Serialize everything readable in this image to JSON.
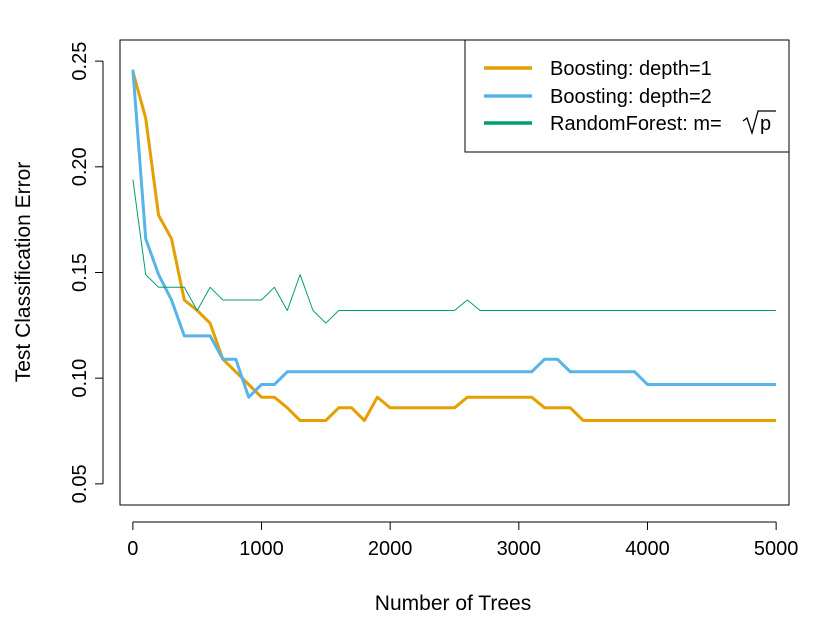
{
  "chart_data": {
    "type": "line",
    "title": "",
    "xlabel": "Number of Trees",
    "ylabel": "Test Classification Error",
    "xlim": [
      -100,
      5100
    ],
    "ylim": [
      0.04,
      0.26
    ],
    "xticks": [
      0,
      1000,
      2000,
      3000,
      4000,
      5000
    ],
    "xtick_labels": [
      "0",
      "1000",
      "2000",
      "3000",
      "4000",
      "5000"
    ],
    "yticks": [
      0.05,
      0.1,
      0.15,
      0.2,
      0.25
    ],
    "ytick_labels": [
      "0.05",
      "0.10",
      "0.15",
      "0.20",
      "0.25"
    ],
    "grid": false,
    "legend_position": "top-right",
    "series": [
      {
        "name": "Boosting: depth=1",
        "color": "#E69F00",
        "line_width": 3,
        "points": [
          [
            0,
            0.245
          ],
          [
            100,
            0.223
          ],
          [
            200,
            0.177
          ],
          [
            300,
            0.166
          ],
          [
            400,
            0.137
          ],
          [
            500,
            0.132
          ],
          [
            600,
            0.126
          ],
          [
            700,
            0.109
          ],
          [
            800,
            0.103
          ],
          [
            900,
            0.097
          ],
          [
            1000,
            0.091
          ],
          [
            1100,
            0.091
          ],
          [
            1200,
            0.086
          ],
          [
            1300,
            0.08
          ],
          [
            1400,
            0.08
          ],
          [
            1500,
            0.08
          ],
          [
            1600,
            0.086
          ],
          [
            1700,
            0.086
          ],
          [
            1800,
            0.08
          ],
          [
            1900,
            0.091
          ],
          [
            2000,
            0.086
          ],
          [
            2100,
            0.086
          ],
          [
            2500,
            0.086
          ],
          [
            2600,
            0.091
          ],
          [
            3100,
            0.091
          ],
          [
            3200,
            0.086
          ],
          [
            3400,
            0.086
          ],
          [
            3500,
            0.08
          ],
          [
            5000,
            0.08
          ]
        ]
      },
      {
        "name": "Boosting: depth=2",
        "color": "#56B4E9",
        "line_width": 3,
        "points": [
          [
            0,
            0.246
          ],
          [
            100,
            0.166
          ],
          [
            200,
            0.149
          ],
          [
            300,
            0.137
          ],
          [
            400,
            0.12
          ],
          [
            500,
            0.12
          ],
          [
            600,
            0.12
          ],
          [
            700,
            0.109
          ],
          [
            800,
            0.109
          ],
          [
            900,
            0.091
          ],
          [
            1000,
            0.097
          ],
          [
            1100,
            0.097
          ],
          [
            1200,
            0.103
          ],
          [
            3100,
            0.103
          ],
          [
            3200,
            0.109
          ],
          [
            3300,
            0.109
          ],
          [
            3400,
            0.103
          ],
          [
            3900,
            0.103
          ],
          [
            4000,
            0.097
          ],
          [
            5000,
            0.097
          ]
        ]
      },
      {
        "name": "RandomForest: m=√p",
        "color": "#009E73",
        "line_width": 1,
        "points": [
          [
            0,
            0.194
          ],
          [
            100,
            0.149
          ],
          [
            200,
            0.143
          ],
          [
            300,
            0.143
          ],
          [
            400,
            0.143
          ],
          [
            500,
            0.132
          ],
          [
            600,
            0.143
          ],
          [
            700,
            0.137
          ],
          [
            800,
            0.137
          ],
          [
            900,
            0.137
          ],
          [
            1000,
            0.137
          ],
          [
            1100,
            0.143
          ],
          [
            1200,
            0.132
          ],
          [
            1300,
            0.149
          ],
          [
            1400,
            0.132
          ],
          [
            1500,
            0.126
          ],
          [
            1600,
            0.132
          ],
          [
            2500,
            0.132
          ],
          [
            2600,
            0.137
          ],
          [
            2700,
            0.132
          ],
          [
            5000,
            0.132
          ]
        ]
      }
    ],
    "legend": {
      "entries": [
        {
          "prefix": "Boosting: depth=1",
          "radicand": ""
        },
        {
          "prefix": "Boosting: depth=2",
          "radicand": ""
        },
        {
          "prefix": "RandomForest: m=",
          "radicand": "p"
        }
      ]
    }
  }
}
